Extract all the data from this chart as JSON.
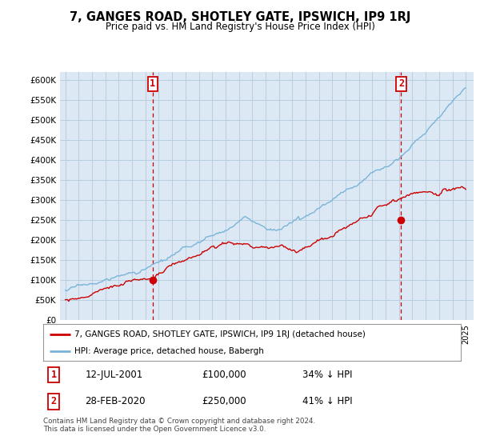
{
  "title": "7, GANGES ROAD, SHOTLEY GATE, IPSWICH, IP9 1RJ",
  "subtitle": "Price paid vs. HM Land Registry's House Price Index (HPI)",
  "ylim": [
    0,
    620000
  ],
  "sale1_date": "12-JUL-2001",
  "sale1_price": 100000,
  "sale1_label": "34% ↓ HPI",
  "sale1_x": 2001.54,
  "sale2_date": "28-FEB-2020",
  "sale2_price": 250000,
  "sale2_label": "41% ↓ HPI",
  "sale2_x": 2020.16,
  "legend_line1": "7, GANGES ROAD, SHOTLEY GATE, IPSWICH, IP9 1RJ (detached house)",
  "legend_line2": "HPI: Average price, detached house, Babergh",
  "footer": "Contains HM Land Registry data © Crown copyright and database right 2024.\nThis data is licensed under the Open Government Licence v3.0.",
  "hpi_color": "#7ab4d8",
  "price_color": "#cc0000",
  "vline_color": "#cc0000",
  "bg_chart": "#dce9f5",
  "background_color": "#ffffff",
  "grid_color": "#b8cfe0"
}
